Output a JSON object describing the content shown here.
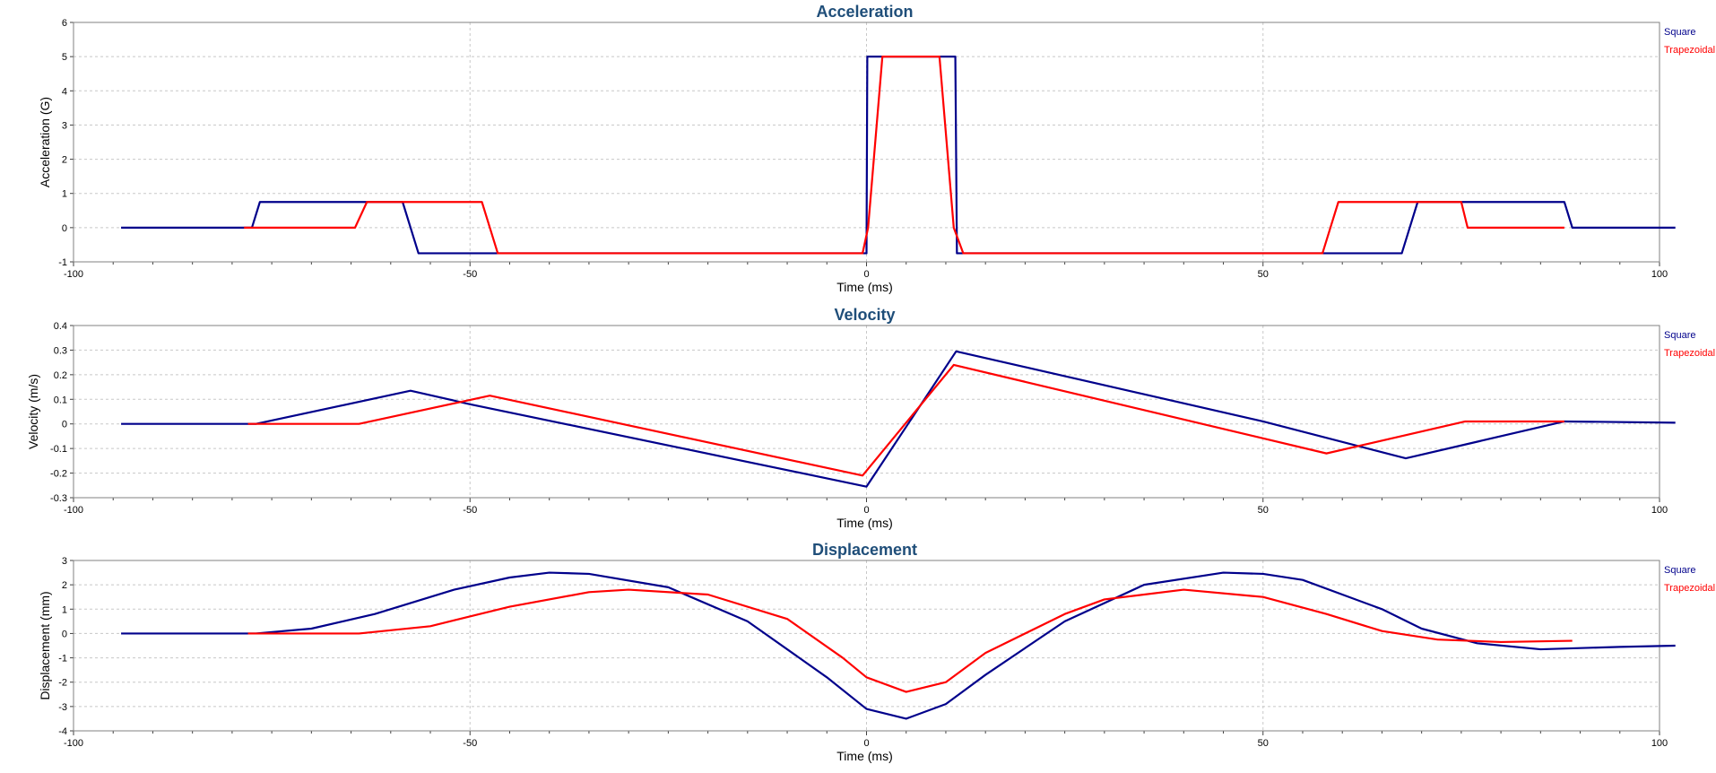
{
  "chart_data": [
    {
      "type": "line",
      "title": "Acceleration",
      "xlabel": "Time (ms)",
      "ylabel": "Acceleration (G)",
      "xlim": [
        -100,
        100
      ],
      "ylim": [
        -1,
        6
      ],
      "xticks": [
        -100,
        -50,
        0,
        50,
        100
      ],
      "yticks": [
        -1,
        0,
        1,
        2,
        3,
        4,
        5,
        6
      ],
      "grid": true,
      "legend_position": "right",
      "series": [
        {
          "name": "Square",
          "color": "#00008B",
          "points": [
            [
              -94,
              0
            ],
            [
              -77.5,
              0
            ],
            [
              -76.5,
              0.75
            ],
            [
              -58.5,
              0.75
            ],
            [
              -56.5,
              -0.75
            ],
            [
              0,
              -0.75
            ],
            [
              0.1,
              5
            ],
            [
              11.2,
              5
            ],
            [
              11.4,
              -0.75
            ],
            [
              67.5,
              -0.75
            ],
            [
              69.5,
              0.75
            ],
            [
              88,
              0.75
            ],
            [
              89,
              0
            ],
            [
              102,
              0
            ]
          ]
        },
        {
          "name": "Trapezoidal",
          "color": "#FF0000",
          "points": [
            [
              -78.5,
              0
            ],
            [
              -64.5,
              0
            ],
            [
              -63,
              0.75
            ],
            [
              -48.5,
              0.75
            ],
            [
              -46.5,
              -0.75
            ],
            [
              -0.5,
              -0.75
            ],
            [
              0.2,
              0
            ],
            [
              2,
              5
            ],
            [
              9.2,
              5
            ],
            [
              11,
              0
            ],
            [
              12.2,
              -0.75
            ],
            [
              57.5,
              -0.75
            ],
            [
              59.5,
              0.75
            ],
            [
              75,
              0.75
            ],
            [
              75.8,
              0
            ],
            [
              88,
              0
            ]
          ]
        }
      ]
    },
    {
      "type": "line",
      "title": "Velocity",
      "xlabel": "Time (ms)",
      "ylabel": "Velocity (m/s)",
      "xlim": [
        -100,
        100
      ],
      "ylim": [
        -0.3,
        0.4
      ],
      "xticks": [
        -100,
        -50,
        0,
        50,
        100
      ],
      "yticks": [
        -0.3,
        -0.2,
        -0.1,
        0,
        0.1,
        0.2,
        0.3,
        0.4
      ],
      "grid": true,
      "legend_position": "right",
      "series": [
        {
          "name": "Square",
          "color": "#00008B",
          "points": [
            [
              -94,
              0
            ],
            [
              -77,
              0
            ],
            [
              -57.5,
              0.135
            ],
            [
              -50,
              0.08
            ],
            [
              0,
              -0.255
            ],
            [
              11.3,
              0.295
            ],
            [
              50,
              0.01
            ],
            [
              68,
              -0.14
            ],
            [
              88,
              0.01
            ],
            [
              102,
              0.005
            ]
          ]
        },
        {
          "name": "Trapezoidal",
          "color": "#FF0000",
          "points": [
            [
              -78,
              0
            ],
            [
              -64,
              0
            ],
            [
              -47.5,
              0.115
            ],
            [
              -0.5,
              -0.21
            ],
            [
              11,
              0.24
            ],
            [
              58,
              -0.12
            ],
            [
              75.5,
              0.01
            ],
            [
              88,
              0.01
            ]
          ]
        }
      ]
    },
    {
      "type": "line",
      "title": "Displacement",
      "xlabel": "Time (ms)",
      "ylabel": "Displacement (mm)",
      "xlim": [
        -100,
        100
      ],
      "ylim": [
        -4,
        3
      ],
      "xticks": [
        -100,
        -50,
        0,
        50,
        100
      ],
      "yticks": [
        -4,
        -3,
        -2,
        -1,
        0,
        1,
        2,
        3
      ],
      "grid": true,
      "legend_position": "right",
      "series": [
        {
          "name": "Square",
          "color": "#00008B",
          "points": [
            [
              -94,
              0
            ],
            [
              -77,
              0
            ],
            [
              -70,
              0.2
            ],
            [
              -62,
              0.8
            ],
            [
              -52,
              1.8
            ],
            [
              -45,
              2.3
            ],
            [
              -40,
              2.5
            ],
            [
              -35,
              2.45
            ],
            [
              -25,
              1.9
            ],
            [
              -15,
              0.5
            ],
            [
              -5,
              -1.8
            ],
            [
              0,
              -3.1
            ],
            [
              5,
              -3.5
            ],
            [
              10,
              -2.9
            ],
            [
              15,
              -1.7
            ],
            [
              25,
              0.5
            ],
            [
              35,
              2.0
            ],
            [
              45,
              2.5
            ],
            [
              50,
              2.45
            ],
            [
              55,
              2.2
            ],
            [
              65,
              1.0
            ],
            [
              70,
              0.2
            ],
            [
              77,
              -0.4
            ],
            [
              85,
              -0.65
            ],
            [
              90,
              -0.6
            ],
            [
              95,
              -0.55
            ],
            [
              102,
              -0.5
            ]
          ]
        },
        {
          "name": "Trapezoidal",
          "color": "#FF0000",
          "points": [
            [
              -78,
              0
            ],
            [
              -64,
              0
            ],
            [
              -55,
              0.3
            ],
            [
              -45,
              1.1
            ],
            [
              -35,
              1.7
            ],
            [
              -30,
              1.8
            ],
            [
              -20,
              1.6
            ],
            [
              -10,
              0.6
            ],
            [
              -3,
              -1.0
            ],
            [
              0,
              -1.8
            ],
            [
              5,
              -2.4
            ],
            [
              10,
              -2.0
            ],
            [
              15,
              -0.8
            ],
            [
              25,
              0.8
            ],
            [
              30,
              1.4
            ],
            [
              40,
              1.8
            ],
            [
              50,
              1.5
            ],
            [
              58,
              0.8
            ],
            [
              65,
              0.1
            ],
            [
              72,
              -0.25
            ],
            [
              80,
              -0.35
            ],
            [
              89,
              -0.3
            ]
          ]
        }
      ]
    }
  ]
}
